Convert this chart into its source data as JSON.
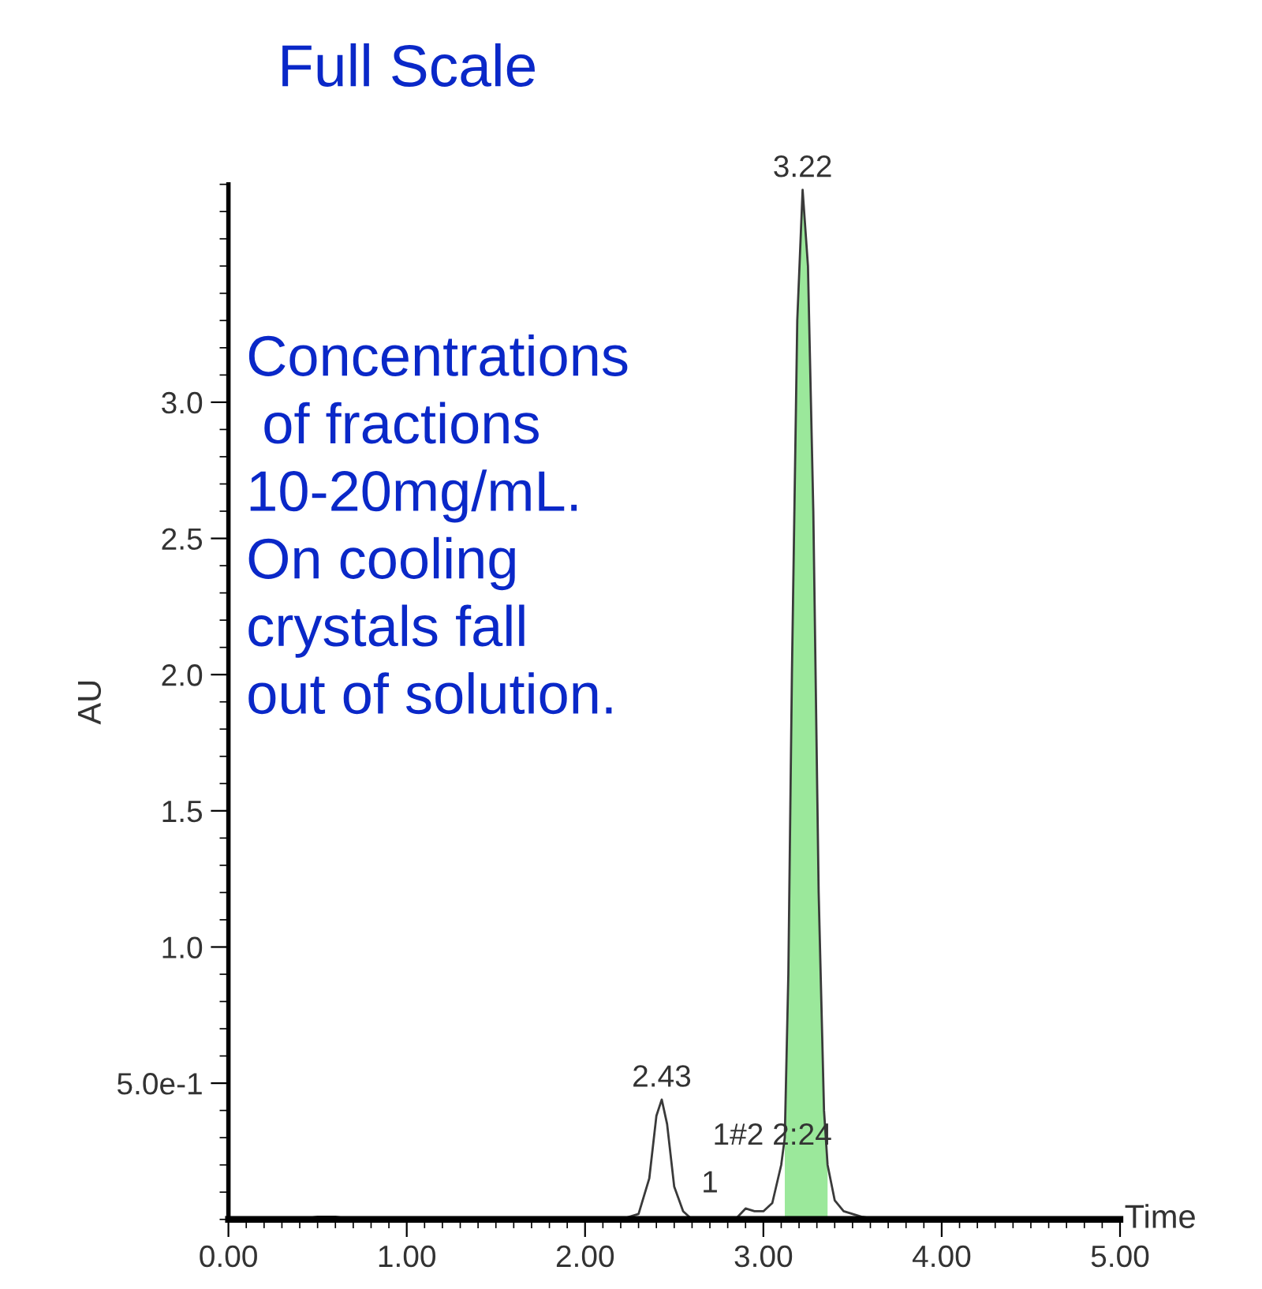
{
  "chart_data": {
    "type": "line",
    "title": "Full Scale",
    "xlabel": "Time",
    "ylabel": "AU",
    "xlim": [
      0,
      5.0
    ],
    "xticks": [
      {
        "value": 0,
        "label": "0.00"
      },
      {
        "value": 1,
        "label": "1.00"
      },
      {
        "value": 2,
        "label": "2.00"
      },
      {
        "value": 3,
        "label": "3.00"
      },
      {
        "value": 4,
        "label": "4.00"
      },
      {
        "value": 5,
        "label": "5.00"
      }
    ],
    "ylim": [
      0,
      3.8
    ],
    "yticks": [
      {
        "value": 0.5,
        "label": "5.0e-1"
      },
      {
        "value": 1.0,
        "label": "1.0"
      },
      {
        "value": 1.5,
        "label": "1.5"
      },
      {
        "value": 2.0,
        "label": "2.0"
      },
      {
        "value": 2.5,
        "label": "2.5"
      },
      {
        "value": 3.0,
        "label": "3.0"
      }
    ],
    "grid": false,
    "legend": false,
    "marker": "none",
    "line_style": "solid",
    "series": [
      {
        "type": "area",
        "color": "#9be89b",
        "x": [
          3.12,
          3.14,
          3.16,
          3.19,
          3.22,
          3.25,
          3.28,
          3.31,
          3.34,
          3.36
        ],
        "values": [
          0.3,
          0.9,
          2.0,
          3.3,
          3.78,
          3.5,
          2.6,
          1.2,
          0.4,
          0.2
        ]
      },
      {
        "color": "#3a3a3a",
        "x": [
          0,
          0.4,
          0.5,
          0.6,
          0.7,
          2.2,
          2.3,
          2.36,
          2.4,
          2.43,
          2.46,
          2.5,
          2.55,
          2.6,
          2.85,
          2.9,
          2.95,
          3.0,
          3.05,
          3.1,
          3.12,
          3.14,
          3.16,
          3.19,
          3.22,
          3.25,
          3.28,
          3.31,
          3.34,
          3.36,
          3.4,
          3.45,
          3.55,
          3.65,
          5.0
        ],
        "values": [
          0,
          0,
          0.01,
          0.01,
          0,
          0,
          0.02,
          0.15,
          0.38,
          0.44,
          0.35,
          0.12,
          0.03,
          0,
          0.005,
          0.04,
          0.03,
          0.03,
          0.06,
          0.2,
          0.3,
          0.9,
          2.0,
          3.3,
          3.78,
          3.5,
          2.6,
          1.2,
          0.4,
          0.2,
          0.07,
          0.03,
          0.01,
          0,
          0
        ]
      }
    ],
    "annotations": [
      "Concentrations\n of fractions\n10-20mg/mL.\nOn cooling\ncrystals fall\nout of solution.",
      {
        "text": "2.43",
        "x": 2.43,
        "y": 0.44
      },
      {
        "text": "3.22",
        "x": 3.22,
        "y": 3.78
      },
      "1#2 2:24",
      "1"
    ]
  }
}
